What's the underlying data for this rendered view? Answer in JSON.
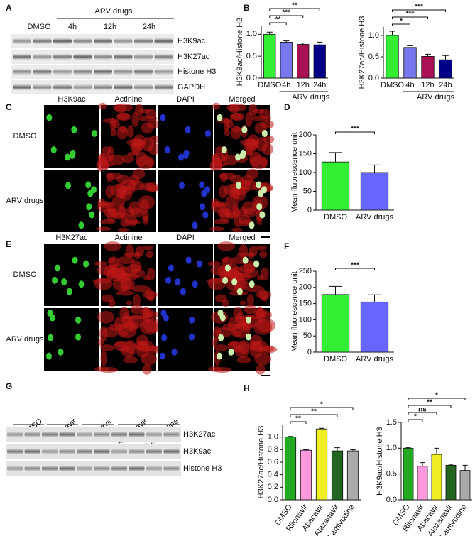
{
  "panel_letters": [
    "A",
    "B",
    "C",
    "D",
    "E",
    "F",
    "G",
    "H"
  ],
  "blot_a": {
    "group_label": "ARV drugs",
    "lanes": [
      "DMSO",
      "4h",
      "12h",
      "24h"
    ],
    "rows": [
      "H3K9ac",
      "H3K27ac",
      "Histone H3",
      "GAPDH"
    ]
  },
  "micro_c": {
    "columns": [
      "H3K9ac",
      "Actinine",
      "DAPI",
      "Merged"
    ],
    "rows": [
      "DMSO",
      "ARV drugs"
    ]
  },
  "micro_e": {
    "columns": [
      "H3K27ac",
      "Actinine",
      "DAPI",
      "Merged"
    ],
    "rows": [
      "DMSO",
      "ARV drugs"
    ]
  },
  "blot_g": {
    "lanes": [
      "DMSO",
      "Ritonavir",
      "Abacavir",
      "Atazanavir",
      "Lamivudine"
    ],
    "rows": [
      "H3K27ac",
      "H3K9ac",
      "Histone H3"
    ]
  },
  "chart_data": [
    {
      "type": "bar",
      "ylabel": "H3K9ac/Histone H3",
      "categories": [
        "DMSO",
        "4h",
        "12h",
        "24h"
      ],
      "values": [
        1.0,
        0.82,
        0.77,
        0.76
      ],
      "errors": [
        0.05,
        0.03,
        0.03,
        0.06
      ],
      "colors": [
        "#33ee33",
        "#7777ee",
        "#aa1155",
        "#000088"
      ],
      "ylim": [
        0,
        1.2
      ],
      "yticks": [
        {
          "value": 0,
          "label": "0.0"
        },
        {
          "value": 0.5,
          "label": "0.5"
        },
        {
          "value": 1,
          "label": "1.0"
        }
      ],
      "brackets": [
        {
          "pair": [
            0,
            1
          ],
          "label": "**"
        },
        {
          "pair": [
            0,
            2
          ],
          "label": "***"
        },
        {
          "pair": [
            0,
            3
          ],
          "label": "**"
        }
      ],
      "group": {
        "label": "ARV drugs",
        "span": [
          1,
          3
        ]
      }
    },
    {
      "type": "bar",
      "ylabel": "H3K27ac/Histone H3",
      "categories": [
        "DMSO",
        "4h",
        "12h",
        "24h"
      ],
      "values": [
        1.0,
        0.72,
        0.51,
        0.43
      ],
      "errors": [
        0.1,
        0.04,
        0.05,
        0.1
      ],
      "colors": [
        "#33ee33",
        "#7777ee",
        "#aa1155",
        "#000088"
      ],
      "ylim": [
        0,
        1.2
      ],
      "yticks": [
        {
          "value": 0,
          "label": "0.0"
        },
        {
          "value": 0.5,
          "label": "0.5"
        },
        {
          "value": 1,
          "label": "1.0"
        }
      ],
      "brackets": [
        {
          "pair": [
            0,
            1
          ],
          "label": "*"
        },
        {
          "pair": [
            0,
            2
          ],
          "label": "***"
        },
        {
          "pair": [
            0,
            3
          ],
          "label": "***"
        }
      ],
      "group": {
        "label": "ARV drugs",
        "span": [
          1,
          3
        ]
      }
    },
    {
      "type": "bar",
      "ylabel": "Mean fluorescence unit",
      "categories": [
        "DMSO",
        "ARV drugs"
      ],
      "values": [
        128,
        100
      ],
      "errors": [
        25,
        20
      ],
      "colors": [
        "#33ee33",
        "#6666ff"
      ],
      "ylim": [
        0,
        200
      ],
      "yticks": [
        0,
        50,
        100,
        150,
        200
      ],
      "brackets": [
        {
          "pair": [
            0,
            1
          ],
          "label": "***"
        }
      ]
    },
    {
      "type": "bar",
      "ylabel": "Mean fluorescence unit",
      "categories": [
        "DMSO",
        "ARV drugs"
      ],
      "values": [
        178,
        155
      ],
      "errors": [
        25,
        22
      ],
      "colors": [
        "#33ee33",
        "#6666ff"
      ],
      "ylim": [
        0,
        250
      ],
      "yticks": [
        0,
        50,
        100,
        150,
        200,
        250
      ],
      "brackets": [
        {
          "pair": [
            0,
            1
          ],
          "label": "***"
        }
      ]
    },
    {
      "type": "bar",
      "ylabel": "H3K27ac/Histone H3",
      "categories": [
        "DMSO",
        "Ritonavir",
        "Abacavir",
        "Atazanavir",
        "Lamivudine"
      ],
      "values": [
        1.0,
        0.79,
        1.13,
        0.78,
        0.78
      ],
      "errors": [
        0.01,
        0.01,
        0.01,
        0.05,
        0.02
      ],
      "colors": [
        "#22aa22",
        "#ff99dd",
        "#eeee22",
        "#226622",
        "#aaaaaa"
      ],
      "rotate_labels": true,
      "ylim": [
        0,
        1.2
      ],
      "yticks": [
        {
          "value": 0,
          "label": "0.0"
        },
        {
          "value": 0.2,
          "label": "0.2"
        },
        {
          "value": 0.4,
          "label": "0.4"
        },
        {
          "value": 0.6,
          "label": "0.6"
        },
        {
          "value": 0.8,
          "label": "0.8"
        },
        {
          "value": 1,
          "label": "1.0"
        }
      ],
      "brackets": [
        {
          "pair": [
            0,
            1
          ],
          "label": "**"
        },
        {
          "pair": [
            0,
            3
          ],
          "label": "**"
        },
        {
          "pair": [
            0,
            4
          ],
          "label": "*"
        }
      ]
    },
    {
      "type": "bar",
      "ylabel": "H3K9ac/Histone H3",
      "categories": [
        "DMSO",
        "Ritonavir",
        "Abacavir",
        "Atazanavir",
        "Lamivudine"
      ],
      "values": [
        1.0,
        0.65,
        0.88,
        0.67,
        0.57
      ],
      "errors": [
        0.01,
        0.07,
        0.12,
        0.02,
        0.1
      ],
      "colors": [
        "#22aa22",
        "#ff99dd",
        "#eeee22",
        "#226622",
        "#aaaaaa"
      ],
      "rotate_labels": true,
      "ylim": [
        0,
        1.5
      ],
      "yticks": [
        {
          "value": 0,
          "label": "0.0"
        },
        {
          "value": 0.5,
          "label": "0.5"
        },
        {
          "value": 1,
          "label": "1.0"
        },
        {
          "value": 1.5,
          "label": "1.5"
        }
      ],
      "brackets": [
        {
          "pair": [
            0,
            1
          ],
          "label": "*"
        },
        {
          "pair": [
            0,
            2
          ],
          "label": "ns"
        },
        {
          "pair": [
            0,
            3
          ],
          "label": "**"
        },
        {
          "pair": [
            0,
            4
          ],
          "label": "*"
        }
      ]
    }
  ]
}
